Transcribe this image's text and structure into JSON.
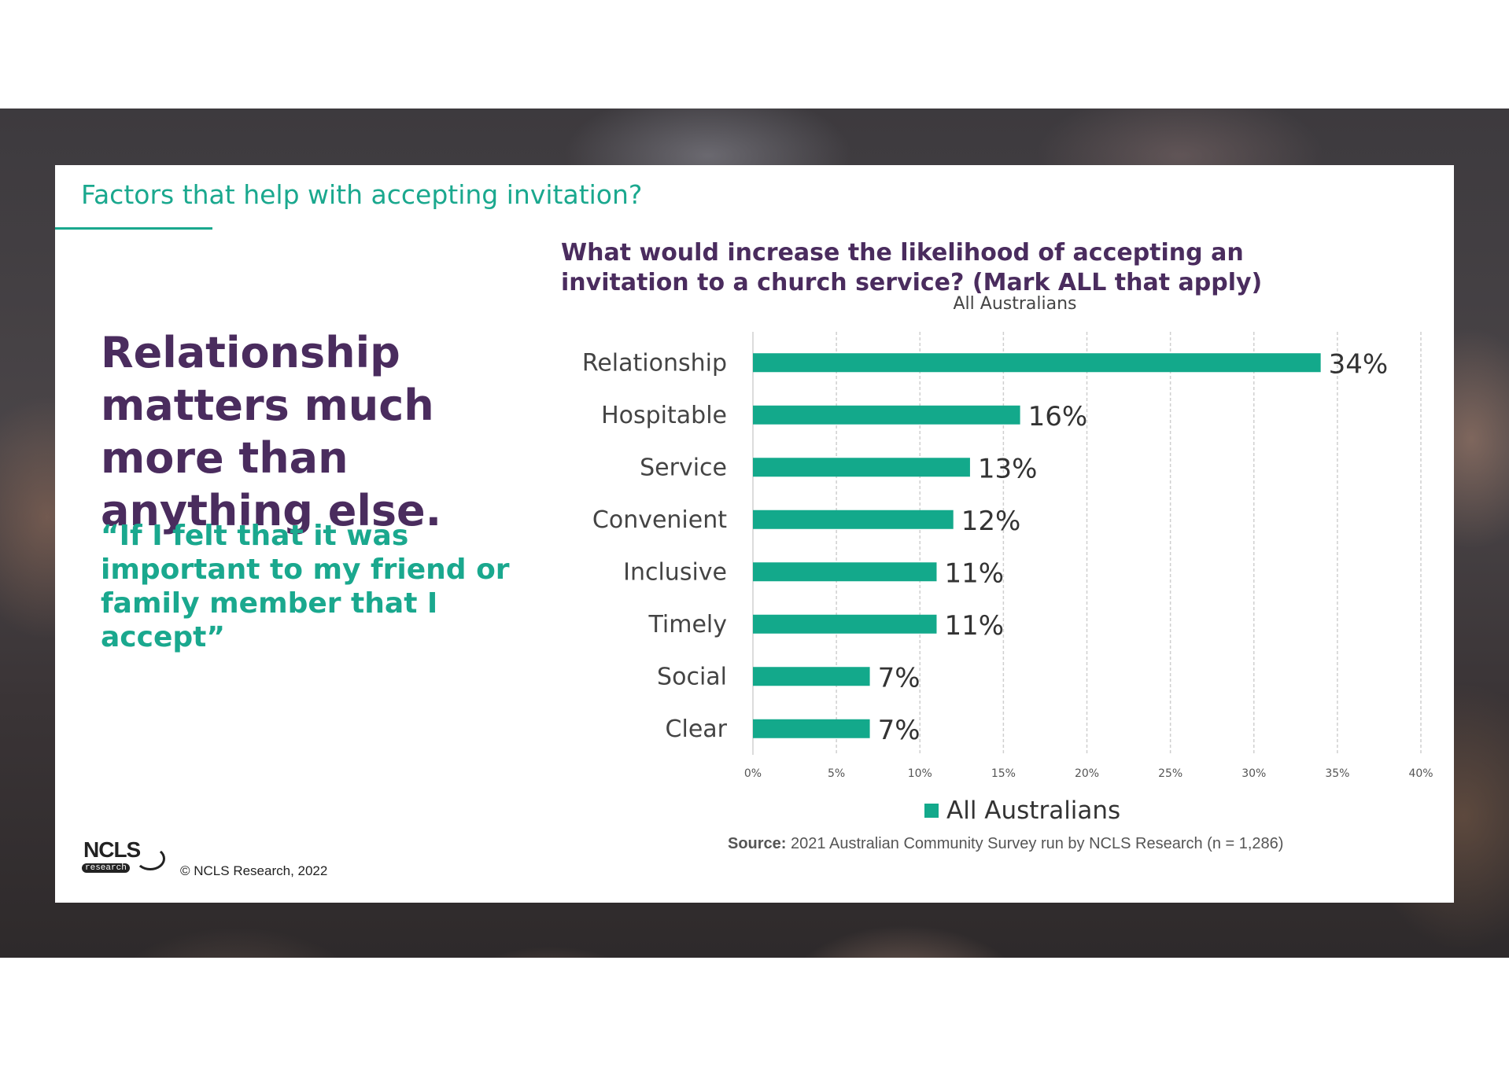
{
  "section_title": "Factors that help with accepting invitation?",
  "headline": "Relationship matters much more than anything else.",
  "quote": "“If I felt that it was important to my friend or family member that I accept”",
  "logo": {
    "text": "NCLS",
    "sub": "research"
  },
  "copyright": "© NCLS Research, 2022",
  "chart_question": "What would increase the likelihood of accepting an invitation to a church service? (Mark ALL that apply)",
  "source": {
    "label": "Source:",
    "text": "2021 Australian Community Survey run by NCLS Research (n = 1,286)"
  },
  "colors": {
    "accent": "#1aa88e",
    "bar": "#13a98b",
    "purple": "#4a2c5e"
  },
  "chart_data": {
    "type": "bar",
    "orientation": "horizontal",
    "subtitle": "All Australians",
    "categories": [
      "Relationship",
      "Hospitable",
      "Service",
      "Convenient",
      "Inclusive",
      "Timely",
      "Social",
      "Clear"
    ],
    "series": [
      {
        "name": "All Australians",
        "values": [
          34,
          16,
          13,
          12,
          11,
          11,
          7,
          7
        ]
      }
    ],
    "data_labels": [
      "34%",
      "16%",
      "13%",
      "12%",
      "11%",
      "11%",
      "7%",
      "7%"
    ],
    "xlim": [
      0,
      40
    ],
    "xticks": [
      "0%",
      "5%",
      "10%",
      "15%",
      "20%",
      "25%",
      "30%",
      "35%",
      "40%"
    ],
    "xlabel": "",
    "ylabel": "",
    "grid": "vertical dashed",
    "legend": "bottom"
  }
}
